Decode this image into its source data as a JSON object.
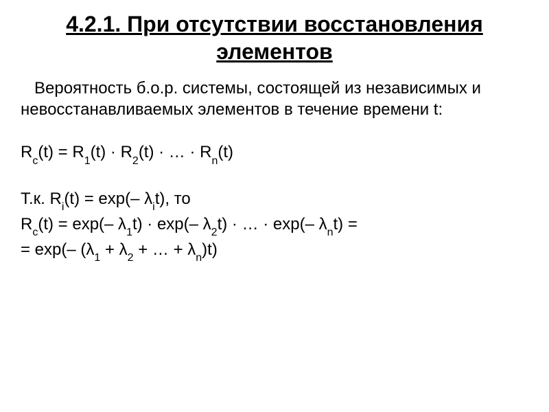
{
  "title": "4.2.1. При отсутствии восстановления элементов",
  "paragraph": "Вероятность б.о.р. системы, состоящей из независимых и невосстанавливаемых элементов в течение времени t:",
  "formula1_parts": {
    "p1": "R",
    "s1": "c",
    "p2": "(t) = R",
    "s2": "1",
    "p3": "(t) · R",
    "s3": "2",
    "p4": "(t) · … · R",
    "s4": "n",
    "p5": "(t)"
  },
  "formula2_parts": {
    "p1": "Т.к. R",
    "s1": "i",
    "p2": "(t) = exp(– λ",
    "s2": "i",
    "p3": "t), то"
  },
  "formula3_parts": {
    "p1": "R",
    "s1": "c",
    "p2": "(t) = exp(– λ",
    "s2": "1",
    "p3": "t) · exp(– λ",
    "s3": "2",
    "p4": "t) · … · exp(– λ",
    "s4": "n",
    "p5": "t) ="
  },
  "formula4_parts": {
    "p1": "= exp(– (λ",
    "s1": "1",
    "p2": " + λ",
    "s2": "2",
    "p3": " + … + λ",
    "s3": "n",
    "p4": ")t)"
  },
  "style": {
    "background_color": "#ffffff",
    "text_color": "#000000",
    "title_fontsize": 32,
    "title_fontweight": "bold",
    "title_decoration": "underline",
    "body_fontsize": 24,
    "sub_fontsize": 16,
    "font_family": "Arial"
  }
}
